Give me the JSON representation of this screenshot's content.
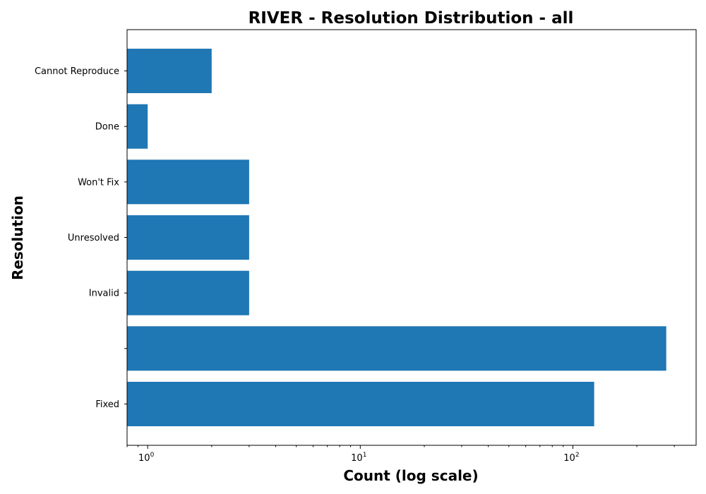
{
  "chart_data": {
    "type": "bar",
    "orientation": "horizontal",
    "title": "RIVER - Resolution Distribution - all",
    "xlabel": "Count (log scale)",
    "ylabel": "Resolution",
    "x_scale": "log",
    "xlim": [
      0.8,
      380
    ],
    "x_ticks": [
      {
        "base": "10",
        "exp": "0",
        "value": 1
      },
      {
        "base": "10",
        "exp": "1",
        "value": 10
      },
      {
        "base": "10",
        "exp": "2",
        "value": 100
      }
    ],
    "categories": [
      "Fixed",
      "",
      "Invalid",
      "Unresolved",
      "Won't Fix",
      "Done",
      "Cannot Reproduce"
    ],
    "values": [
      126,
      275,
      3,
      3,
      3,
      1,
      2
    ],
    "bar_color": "#1f77b4",
    "grid": false,
    "legend": "none"
  }
}
